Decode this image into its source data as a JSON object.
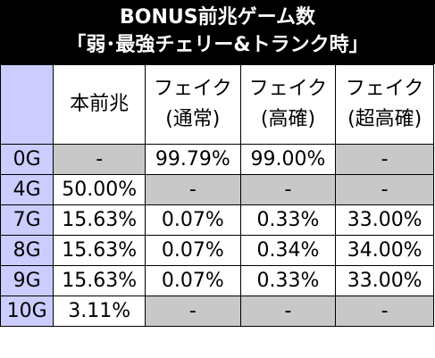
{
  "title": {
    "line1": "BONUS前兆ゲーム数",
    "line2": "「弱･最強チェリー&トランク時」"
  },
  "colors": {
    "header_bg": "#ccccff",
    "na_bg": "#c8c8c8",
    "title_bg": "#000000"
  },
  "columns": [
    {
      "line1": "本前兆",
      "line2": ""
    },
    {
      "line1": "フェイク",
      "line2": "(通常)"
    },
    {
      "line1": "フェイク",
      "line2": "(高確)"
    },
    {
      "line1": "フェイク",
      "line2": "(超高確)"
    }
  ],
  "rows": [
    {
      "g": "0G",
      "cells": [
        "-",
        "99.79%",
        "99.00%",
        "-"
      ]
    },
    {
      "g": "4G",
      "cells": [
        "50.00%",
        "-",
        "-",
        "-"
      ]
    },
    {
      "g": "7G",
      "cells": [
        "15.63%",
        "0.07%",
        "0.33%",
        "33.00%"
      ]
    },
    {
      "g": "8G",
      "cells": [
        "15.63%",
        "0.07%",
        "0.34%",
        "34.00%"
      ]
    },
    {
      "g": "9G",
      "cells": [
        "15.63%",
        "0.07%",
        "0.33%",
        "33.00%"
      ]
    },
    {
      "g": "10G",
      "cells": [
        "3.11%",
        "-",
        "-",
        "-"
      ]
    }
  ]
}
